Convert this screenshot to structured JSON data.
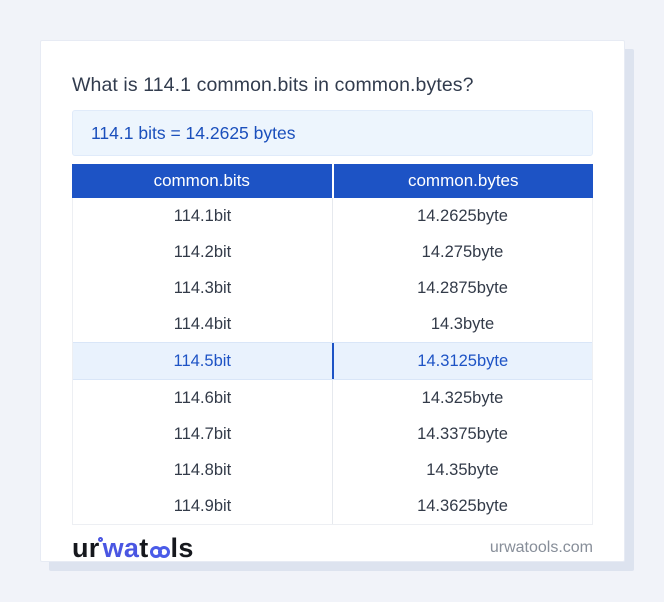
{
  "page": {
    "title": "What is 114.1 common.bits in common.bytes?"
  },
  "result": {
    "text": "114.1 bits = 14.2625 bytes"
  },
  "table": {
    "columns": [
      "common.bits",
      "common.bytes"
    ],
    "highlighted_row_index": 4,
    "rows": [
      {
        "bits": "114.1bit",
        "bytes": "14.2625byte",
        "highlighted": false
      },
      {
        "bits": "114.2bit",
        "bytes": "14.275byte",
        "highlighted": false
      },
      {
        "bits": "114.3bit",
        "bytes": "14.2875byte",
        "highlighted": false
      },
      {
        "bits": "114.4bit",
        "bytes": "14.3byte",
        "highlighted": false
      },
      {
        "bits": "114.5bit",
        "bytes": "14.3125byte",
        "highlighted": true
      },
      {
        "bits": "114.6bit",
        "bytes": "14.325byte",
        "highlighted": false
      },
      {
        "bits": "114.7bit",
        "bytes": "14.3375byte",
        "highlighted": false
      },
      {
        "bits": "114.8bit",
        "bytes": "14.35byte",
        "highlighted": false
      },
      {
        "bits": "114.9bit",
        "bytes": "14.3625byte",
        "highlighted": false
      }
    ]
  },
  "footer": {
    "logo": {
      "part_ur": "ur",
      "part_wa": "wa",
      "part_t": "t",
      "part_oo": "oo",
      "part_ls": "ls",
      "ring_icon": "small-circle",
      "oo_icon": "linked-circles"
    },
    "domain": "urwatools.com"
  },
  "colors": {
    "page_background": "#f1f3f9",
    "card_background": "#ffffff",
    "card_shadow": "#dde3ef",
    "header_blue": "#1d53c5",
    "result_text_blue": "#1a4fbc",
    "result_background": "#edf5fd",
    "highlight_row_background": "#e9f2fd",
    "highlight_text": "#1d53c5",
    "cell_text": "#333b49",
    "title_text": "#323c4e",
    "logo_accent_blue": "#4a56e2",
    "domain_text": "#878e99"
  }
}
